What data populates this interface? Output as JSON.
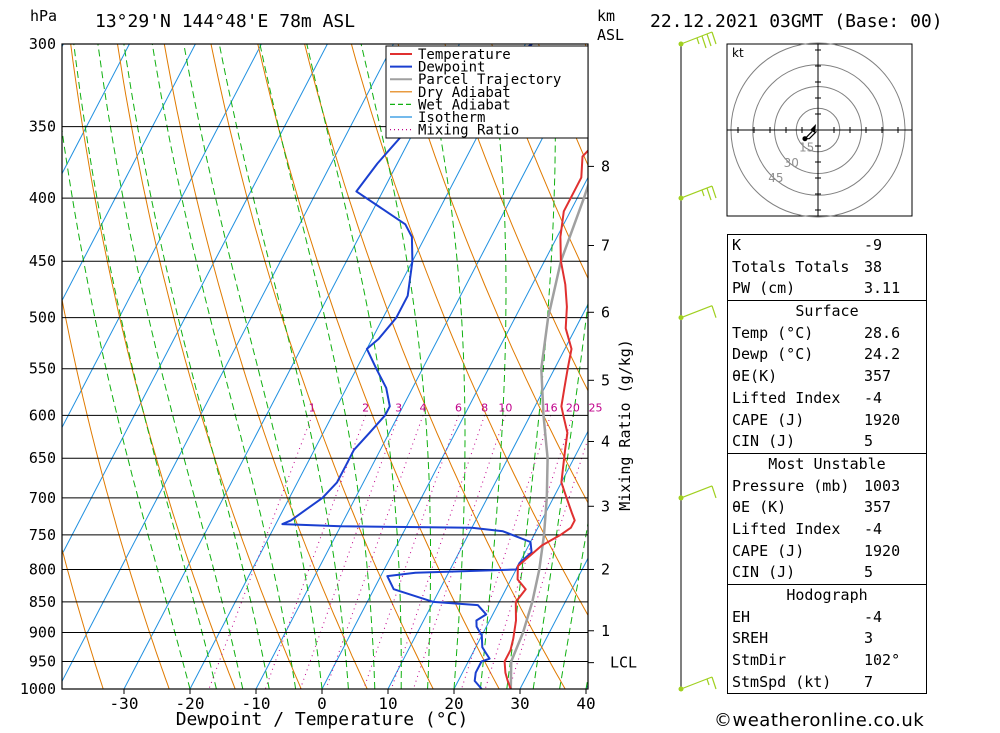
{
  "header": {
    "location": "13°29'N 144°48'E 78m ASL",
    "datetime": "22.12.2021 03GMT (Base: 00)",
    "hpa_label": "hPa",
    "km_label": "km",
    "asl_label": "ASL"
  },
  "legend": [
    "Temperature",
    "Dewpoint",
    "Parcel Trajectory",
    "Dry Adiabat",
    "Wet Adiabat",
    "Isotherm",
    "Mixing Ratio"
  ],
  "colors": {
    "temperature": "#e03030",
    "dewpoint": "#1a3fd0",
    "parcel": "#a0a0a0",
    "dry_adiabat": "#e07a00",
    "wet_adiabat": "#10b010",
    "isotherm": "#2090e0",
    "mixing_ratio": "#c0008a",
    "wind": "#a0d020"
  },
  "chart_data": {
    "type": "line",
    "xlabel": "Dewpoint / Temperature (°C)",
    "ylabel": "hPa",
    "x_ticks": [
      -30,
      -20,
      -10,
      0,
      10,
      20,
      30,
      40
    ],
    "x_range": [
      -40,
      40
    ],
    "pressure_levels": [
      300,
      350,
      400,
      450,
      500,
      550,
      600,
      650,
      700,
      750,
      800,
      850,
      900,
      950,
      1000
    ],
    "pressure_range": [
      300,
      1000
    ],
    "km_ticks": [
      {
        "label": "8",
        "p": 377
      },
      {
        "label": "7",
        "p": 437
      },
      {
        "label": "6",
        "p": 495
      },
      {
        "label": "5",
        "p": 562
      },
      {
        "label": "4",
        "p": 630
      },
      {
        "label": "3",
        "p": 711
      },
      {
        "label": "2",
        "p": 800
      },
      {
        "label": "1",
        "p": 897
      },
      {
        "label": "LCL",
        "p": 952
      }
    ],
    "mixing_ratio_axis_label": "Mixing Ratio (g/kg)",
    "mixing_ratio_labels": [
      "1",
      "2",
      "3",
      "4",
      "6",
      "8",
      "10",
      "16",
      "20",
      "25"
    ],
    "series": [
      {
        "name": "Temperature",
        "points": [
          [
            -7,
            300
          ],
          [
            -3,
            330
          ],
          [
            -1,
            355
          ],
          [
            -2.5,
            370
          ],
          [
            -1,
            385
          ],
          [
            -1,
            400
          ],
          [
            -1,
            410
          ],
          [
            0.5,
            430
          ],
          [
            2.5,
            450
          ],
          [
            5,
            470
          ],
          [
            7,
            490
          ],
          [
            8.5,
            510
          ],
          [
            11,
            530
          ],
          [
            12,
            550
          ],
          [
            13,
            570
          ],
          [
            14,
            590
          ],
          [
            15,
            600
          ],
          [
            17,
            620
          ],
          [
            18,
            640
          ],
          [
            19,
            660
          ],
          [
            20,
            680
          ],
          [
            22,
            700
          ],
          [
            24,
            720
          ],
          [
            25,
            730
          ],
          [
            25,
            740
          ],
          [
            24,
            750
          ],
          [
            22,
            765
          ],
          [
            21,
            780
          ],
          [
            20,
            795
          ],
          [
            21,
            815
          ],
          [
            23,
            830
          ],
          [
            22.5,
            850
          ],
          [
            24,
            880
          ],
          [
            25,
            910
          ],
          [
            25.5,
            930
          ],
          [
            25.5,
            950
          ],
          [
            26.5,
            970
          ],
          [
            27.5,
            985
          ],
          [
            28.6,
            1000
          ]
        ]
      },
      {
        "name": "Dewpoint",
        "points": [
          [
            -19,
            300
          ],
          [
            -24,
            320
          ],
          [
            -31,
            340
          ],
          [
            -31,
            350
          ],
          [
            -33,
            375
          ],
          [
            -34,
            395
          ],
          [
            -24,
            420
          ],
          [
            -22,
            430
          ],
          [
            -20,
            450
          ],
          [
            -18,
            480
          ],
          [
            -18,
            500
          ],
          [
            -19,
            520
          ],
          [
            -20,
            530
          ],
          [
            -17,
            550
          ],
          [
            -14,
            570
          ],
          [
            -12,
            590
          ],
          [
            -12,
            600
          ],
          [
            -13,
            620
          ],
          [
            -14,
            640
          ],
          [
            -14,
            660
          ],
          [
            -14,
            680
          ],
          [
            -15,
            700
          ],
          [
            -18,
            730
          ],
          [
            -19,
            735
          ],
          [
            -10,
            738
          ],
          [
            0,
            739
          ],
          [
            10,
            740
          ],
          [
            15,
            745
          ],
          [
            20,
            760
          ],
          [
            21,
            775
          ],
          [
            20,
            790
          ],
          [
            20,
            800
          ],
          [
            5,
            805
          ],
          [
            1,
            810
          ],
          [
            3,
            830
          ],
          [
            10,
            850
          ],
          [
            17,
            855
          ],
          [
            19,
            870
          ],
          [
            18,
            880
          ],
          [
            18.5,
            890
          ],
          [
            20,
            905
          ],
          [
            21,
            925
          ],
          [
            22,
            935
          ],
          [
            23,
            945
          ],
          [
            22,
            950
          ],
          [
            22,
            970
          ],
          [
            22.5,
            985
          ],
          [
            24.2,
            1000
          ]
        ]
      },
      {
        "name": "Parcel Trajectory",
        "points": [
          [
            -3,
            300
          ],
          [
            -1,
            350
          ],
          [
            1,
            400
          ],
          [
            2.5,
            450
          ],
          [
            5,
            500
          ],
          [
            8,
            550
          ],
          [
            12,
            600
          ],
          [
            16,
            650
          ],
          [
            19,
            700
          ],
          [
            21.5,
            750
          ],
          [
            23.5,
            800
          ],
          [
            25,
            850
          ],
          [
            26,
            900
          ],
          [
            26.5,
            950
          ],
          [
            28.6,
            1000
          ]
        ]
      }
    ],
    "hodograph": {
      "unit_label": "kt",
      "ring_labels": [
        "15",
        "30",
        "45"
      ],
      "rings_kt": [
        15,
        30,
        45,
        60
      ],
      "trace_kt": [
        [
          -4,
          -1
        ],
        [
          -6,
          -3
        ],
        [
          -9,
          -6
        ],
        [
          -6,
          -6
        ],
        [
          -3,
          -3
        ],
        [
          -1,
          -1
        ]
      ]
    },
    "wind_barbs": [
      {
        "p": 300,
        "speed": 25
      },
      {
        "p": 400,
        "speed": 15
      },
      {
        "p": 500,
        "speed": 10
      },
      {
        "p": 700,
        "speed": 10
      },
      {
        "p": 1000,
        "speed": 5
      }
    ]
  },
  "stats": {
    "top": [
      {
        "label": "K",
        "value": "-9"
      },
      {
        "label": "Totals Totals",
        "value": "38"
      },
      {
        "label": "PW (cm)",
        "value": "3.11"
      }
    ],
    "surface": {
      "title": "Surface",
      "rows": [
        {
          "label": "Temp (°C)",
          "value": "28.6"
        },
        {
          "label": "Dewp (°C)",
          "value": "24.2"
        },
        {
          "label": "θE(K)",
          "value": "357"
        },
        {
          "label": "Lifted Index",
          "value": "-4"
        },
        {
          "label": "CAPE (J)",
          "value": "1920"
        },
        {
          "label": "CIN (J)",
          "value": "5"
        }
      ]
    },
    "most_unstable": {
      "title": "Most Unstable",
      "rows": [
        {
          "label": "Pressure (mb)",
          "value": "1003"
        },
        {
          "label": "θE (K)",
          "value": "357"
        },
        {
          "label": "Lifted Index",
          "value": "-4"
        },
        {
          "label": "CAPE (J)",
          "value": "1920"
        },
        {
          "label": "CIN (J)",
          "value": "5"
        }
      ]
    },
    "hodograph": {
      "title": "Hodograph",
      "rows": [
        {
          "label": "EH",
          "value": "-4"
        },
        {
          "label": "SREH",
          "value": "3"
        },
        {
          "label": "StmDir",
          "value": "102°"
        },
        {
          "label": "StmSpd (kt)",
          "value": "7"
        }
      ]
    }
  },
  "footer": "©weatheronline.co.uk"
}
